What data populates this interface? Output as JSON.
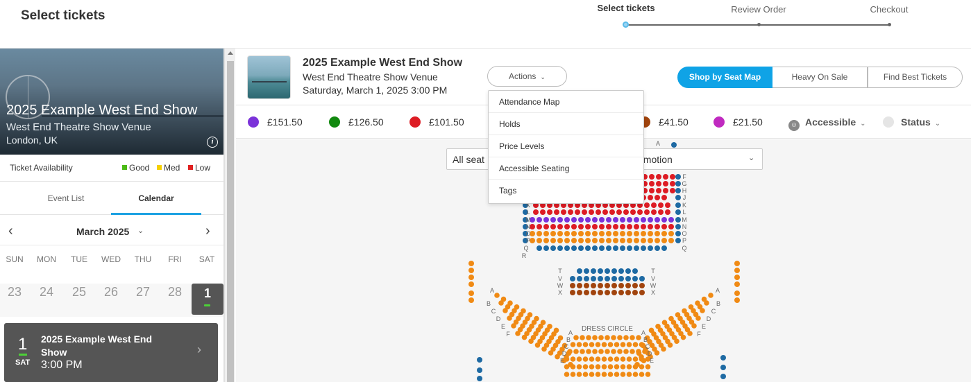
{
  "header": {
    "title": "Select tickets",
    "steps": [
      {
        "label": "Select tickets",
        "active": true
      },
      {
        "label": "Review Order",
        "active": false
      },
      {
        "label": "Checkout",
        "active": false
      }
    ]
  },
  "sidebar": {
    "hero": {
      "title": "2025 Example West End Show",
      "venue": "West End Theatre Show Venue",
      "city": "London, UK",
      "info_icon": "i"
    },
    "availability": {
      "label": "Ticket Availability",
      "legend": [
        {
          "label": "Good",
          "color": "#4cbb17"
        },
        {
          "label": "Med",
          "color": "#f5d000"
        },
        {
          "label": "Low",
          "color": "#e02020"
        }
      ]
    },
    "tabs": [
      "Event List",
      "Calendar"
    ],
    "active_tab": "Calendar",
    "calendar": {
      "month": "March 2025",
      "prev": "‹",
      "next": "›",
      "days_of_week": [
        "SUN",
        "MON",
        "TUE",
        "WED",
        "THU",
        "FRI",
        "SAT"
      ],
      "dates": [
        "23",
        "24",
        "25",
        "26",
        "27",
        "28"
      ],
      "selected_date": "1"
    },
    "performance": {
      "day": "1",
      "dow": "SAT",
      "title": "2025 Example West End Show",
      "time": "3:00 PM",
      "chevron": "›"
    }
  },
  "event": {
    "title": "2025 Example West End Show",
    "venue": "West End Theatre Show Venue",
    "datetime": "Saturday, March 1, 2025 3:00 PM"
  },
  "actions": {
    "label": "Actions",
    "chevron": "⌄",
    "menu": [
      "Attendance Map",
      "Holds",
      "Price Levels",
      "Accessible Seating",
      "Tags"
    ]
  },
  "shop_modes": [
    {
      "label": "Shop by Seat Map",
      "active": true
    },
    {
      "label": "Heavy On Sale",
      "active": false
    },
    {
      "label": "Find Best Tickets",
      "active": false
    }
  ],
  "prices": [
    {
      "label": "£151.50",
      "color": "#7b32d9"
    },
    {
      "label": "£126.50",
      "color": "#12890f"
    },
    {
      "label": "£101.50",
      "color": "#dd1c24"
    },
    {
      "label": "£41.50",
      "color": "#a1440e"
    },
    {
      "label": "£21.50",
      "color": "#c02ac0"
    }
  ],
  "filters": {
    "accessible": "Accessible",
    "status": "Status"
  },
  "seat_select": {
    "left_text": "All seat",
    "right_text": "omotion"
  },
  "seat_map": {
    "section_label": "DRESS CIRCLE",
    "seat_colors": {
      "purple": "#7b32d9",
      "red": "#dd1c24",
      "blue": "#1e6aa3",
      "orange": "#f08a14",
      "brown": "#a1440e"
    },
    "stalls_rows_left": [
      "K",
      "L",
      "M",
      "N",
      "O",
      "P",
      "Q",
      "R"
    ],
    "stalls_rows_right": [
      "F",
      "G",
      "H",
      "J",
      "K",
      "L",
      "M",
      "N",
      "O",
      "P",
      "Q"
    ],
    "rear_rows": [
      "T",
      "V",
      "W",
      "X"
    ],
    "circle_rows_left": [
      "A",
      "B",
      "C",
      "D",
      "E",
      "F"
    ],
    "circle_rows_center": [
      "A",
      "B",
      "C",
      "D",
      "E"
    ],
    "top_label": "A"
  }
}
